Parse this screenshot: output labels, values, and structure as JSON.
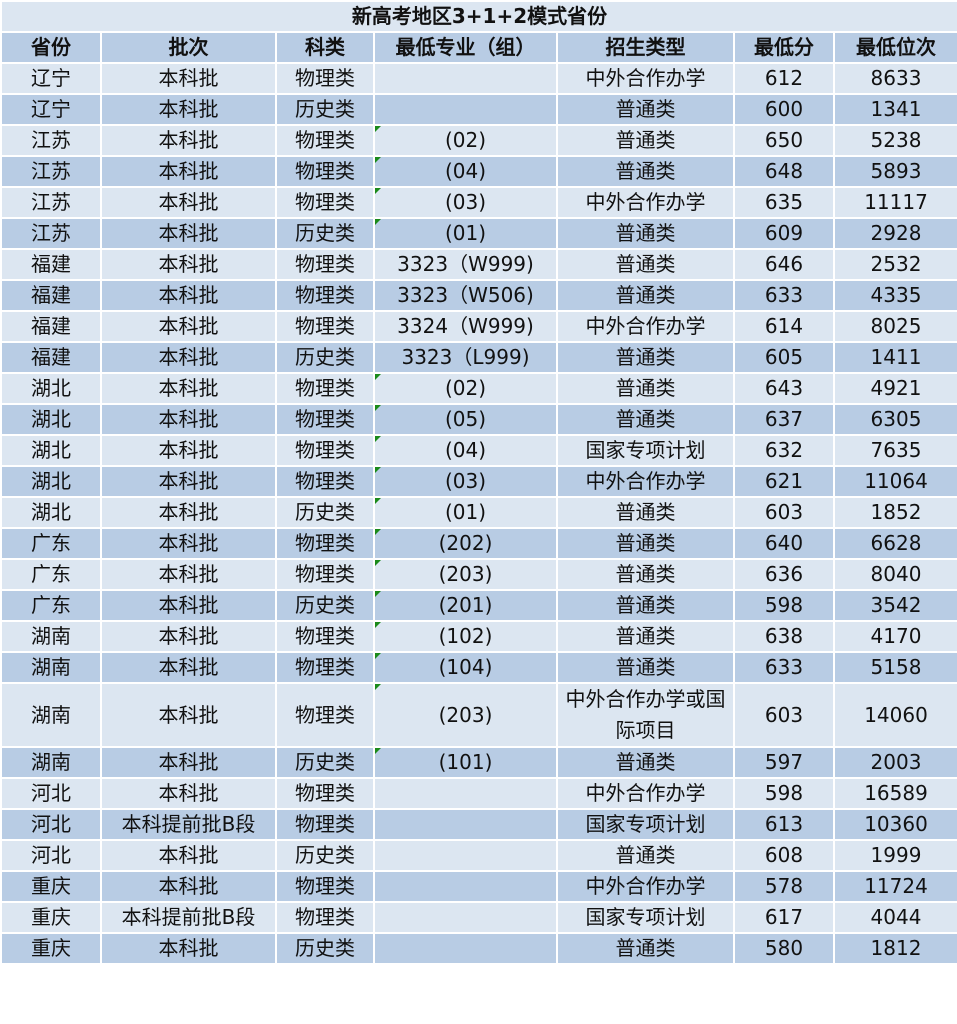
{
  "title": "新高考地区3+1+2模式省份",
  "headers": [
    "省份",
    "批次",
    "科类",
    "最低专业（组）",
    "招生类型",
    "最低分",
    "最低位次"
  ],
  "colors": {
    "light_row": "#dce6f1",
    "dark_row": "#b8cce4",
    "marker": "#1a8a1a"
  },
  "rows": [
    [
      "辽宁",
      "本科批",
      "物理类",
      "",
      "中外合作办学",
      "612",
      "8633"
    ],
    [
      "辽宁",
      "本科批",
      "历史类",
      "",
      "普通类",
      "600",
      "1341"
    ],
    [
      "江苏",
      "本科批",
      "物理类",
      "(02)",
      "普通类",
      "650",
      "5238"
    ],
    [
      "江苏",
      "本科批",
      "物理类",
      "(04)",
      "普通类",
      "648",
      "5893"
    ],
    [
      "江苏",
      "本科批",
      "物理类",
      "(03)",
      "中外合作办学",
      "635",
      "11117"
    ],
    [
      "江苏",
      "本科批",
      "历史类",
      "(01)",
      "普通类",
      "609",
      "2928"
    ],
    [
      "福建",
      "本科批",
      "物理类",
      "3323（W999)",
      "普通类",
      "646",
      "2532"
    ],
    [
      "福建",
      "本科批",
      "物理类",
      "3323（W506)",
      "普通类",
      "633",
      "4335"
    ],
    [
      "福建",
      "本科批",
      "物理类",
      "3324（W999)",
      "中外合作办学",
      "614",
      "8025"
    ],
    [
      "福建",
      "本科批",
      "历史类",
      "3323（L999)",
      "普通类",
      "605",
      "1411"
    ],
    [
      "湖北",
      "本科批",
      "物理类",
      "(02)",
      "普通类",
      "643",
      "4921"
    ],
    [
      "湖北",
      "本科批",
      "物理类",
      "(05)",
      "普通类",
      "637",
      "6305"
    ],
    [
      "湖北",
      "本科批",
      "物理类",
      "(04)",
      "国家专项计划",
      "632",
      "7635"
    ],
    [
      "湖北",
      "本科批",
      "物理类",
      "(03)",
      "中外合作办学",
      "621",
      "11064"
    ],
    [
      "湖北",
      "本科批",
      "历史类",
      "(01)",
      "普通类",
      "603",
      "1852"
    ],
    [
      "广东",
      "本科批",
      "物理类",
      "(202)",
      "普通类",
      "640",
      "6628"
    ],
    [
      "广东",
      "本科批",
      "物理类",
      "(203)",
      "普通类",
      "636",
      "8040"
    ],
    [
      "广东",
      "本科批",
      "历史类",
      "(201)",
      "普通类",
      "598",
      "3542"
    ],
    [
      "湖南",
      "本科批",
      "物理类",
      "(102)",
      "普通类",
      "638",
      "4170"
    ],
    [
      "湖南",
      "本科批",
      "物理类",
      "(104)",
      "普通类",
      "633",
      "5158"
    ],
    [
      "湖南",
      "本科批",
      "物理类",
      "(203)",
      "中外合作办学或国际项目",
      "603",
      "14060"
    ],
    [
      "湖南",
      "本科批",
      "历史类",
      "(101)",
      "普通类",
      "597",
      "2003"
    ],
    [
      "河北",
      "本科批",
      "物理类",
      "",
      "中外合作办学",
      "598",
      "16589"
    ],
    [
      "河北",
      "本科提前批B段",
      "物理类",
      "",
      "国家专项计划",
      "613",
      "10360"
    ],
    [
      "河北",
      "本科批",
      "历史类",
      "",
      "普通类",
      "608",
      "1999"
    ],
    [
      "重庆",
      "本科批",
      "物理类",
      "",
      "中外合作办学",
      "578",
      "11724"
    ],
    [
      "重庆",
      "本科提前批B段",
      "物理类",
      "",
      "国家专项计划",
      "617",
      "4044"
    ],
    [
      "重庆",
      "本科批",
      "历史类",
      "",
      "普通类",
      "580",
      "1812"
    ]
  ]
}
